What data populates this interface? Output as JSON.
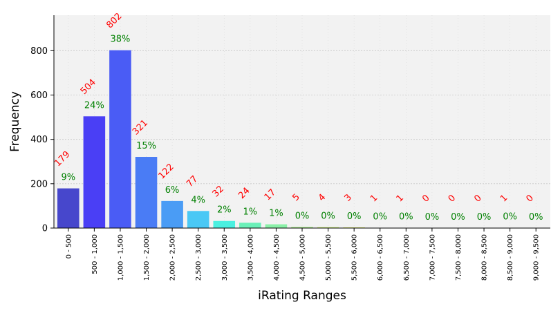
{
  "chart_data": {
    "type": "bar",
    "xlabel": "iRating Ranges",
    "ylabel": "Frequency",
    "ylim": [
      0,
      960
    ],
    "yticks": [
      0,
      200,
      400,
      600,
      800
    ],
    "grid": true,
    "categories": [
      "0 - 500",
      "500 - 1,000",
      "1,000 - 1,500",
      "1,500 - 2,000",
      "2,000 - 2,500",
      "2,500 - 3,000",
      "3,000 - 3,500",
      "3,500 - 4,000",
      "4,000 - 4,500",
      "4,500 - 5,000",
      "5,000 - 5,500",
      "5,500 - 6,000",
      "6,000 - 6,500",
      "6,500 - 7,000",
      "7,000 - 7,500",
      "7,500 - 8,000",
      "8,000 - 8,500",
      "8,500 - 9,000",
      "9,000 - 9,500"
    ],
    "values": [
      179,
      504,
      802,
      321,
      122,
      77,
      32,
      24,
      17,
      5,
      4,
      3,
      1,
      1,
      0,
      0,
      0,
      1,
      0
    ],
    "count_labels": [
      "179",
      "504",
      "802",
      "321",
      "122",
      "77",
      "32",
      "24",
      "17",
      "5",
      "4",
      "3",
      "1",
      "1",
      "0",
      "0",
      "0",
      "1",
      "0"
    ],
    "percent_labels": [
      "9%",
      "24%",
      "38%",
      "15%",
      "6%",
      "4%",
      "2%",
      "1%",
      "1%",
      "0%",
      "0%",
      "0%",
      "0%",
      "0%",
      "0%",
      "0%",
      "0%",
      "0%",
      "0%"
    ],
    "bar_colors": [
      "#4747cc",
      "#4a3ff5",
      "#4a5cf5",
      "#4a7cf5",
      "#4a9cf5",
      "#4ac8f5",
      "#4af0e0",
      "#6af0b8",
      "#8af0a8",
      "#a8f08a",
      "#c8f070",
      "#e0f060",
      "#f0e860",
      "#f0d060",
      "#f0b860",
      "#f0a060",
      "#f08860",
      "#f07060",
      "#f05860"
    ],
    "count_label_color": "#ff0000",
    "percent_label_color": "#008000",
    "plot_background": "#f2f2f2"
  }
}
